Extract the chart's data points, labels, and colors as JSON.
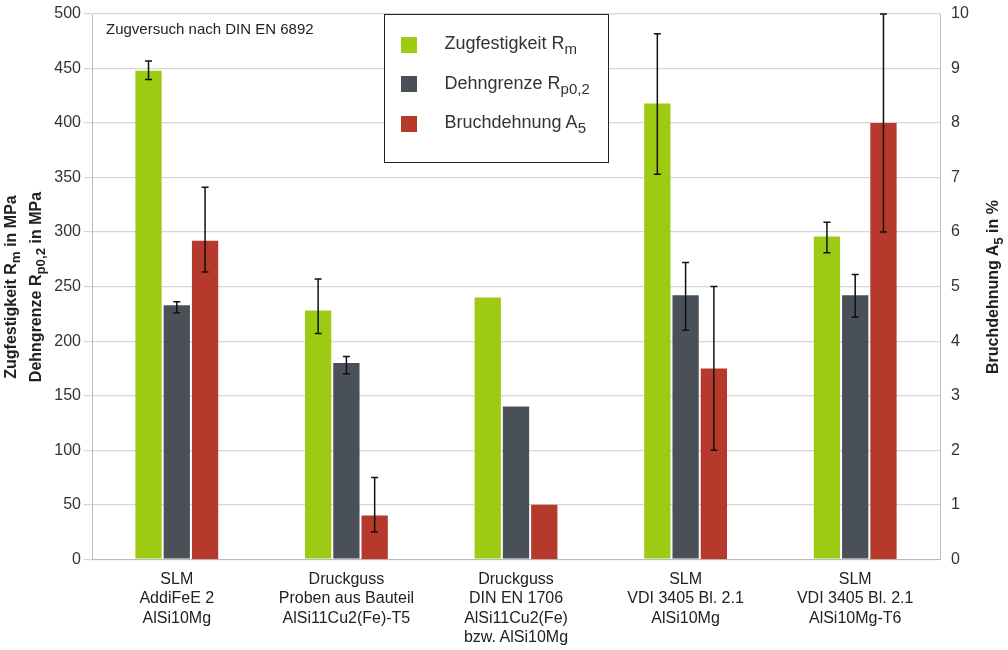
{
  "chart_data": {
    "type": "bar",
    "categories": [
      "SLM\nAddiFeE 2\nAlSi10Mg",
      "Druckguss\nProben aus Bauteil\nAlSi11Cu2(Fe)-T5",
      "Druckguss\nDIN EN 1706\nAlSi11Cu2(Fe)\nbzw. AlSi10Mg",
      "SLM\nVDI 3405 Bl. 2.1\nAlSi10Mg",
      "SLM\nVDI 3405 Bl. 2.1\nAlSi10Mg-T6"
    ],
    "series": [
      {
        "name": "Zugfestigkeit R$_{m}$",
        "color": "#9dcb14",
        "values": [
          448,
          228,
          240,
          418,
          296
        ],
        "errors": [
          [
            440,
            457
          ],
          [
            207,
            257
          ],
          null,
          [
            353,
            482
          ],
          [
            281,
            309
          ]
        ]
      },
      {
        "name": "Dehngrenze R$_{p0,2}$",
        "color": "#4a5057",
        "values": [
          233,
          180,
          140,
          242,
          242
        ],
        "errors": [
          [
            226,
            236
          ],
          [
            170,
            186
          ],
          null,
          [
            210,
            272
          ],
          [
            222,
            261
          ]
        ]
      },
      {
        "name": "Bruchdehnung A$_{5}$",
        "color": "#b63a2c",
        "axis": "y2",
        "values": [
          5.84,
          0.8,
          1.0,
          3.5,
          8.0
        ],
        "errors": [
          [
            5.27,
            6.82
          ],
          [
            0.5,
            1.5
          ],
          null,
          [
            2.0,
            5.0
          ],
          [
            6.0,
            10.0
          ]
        ]
      }
    ],
    "ylabel": "Zugfestigkeit R$_{m}$ in MPa\nDehngrenze R$_{p0,2}$ in MPa",
    "y2label": "Bruchdehnung A$_{5}$ in %",
    "ylim": [
      0,
      500
    ],
    "yticks": [
      0,
      50,
      100,
      150,
      200,
      250,
      300,
      350,
      400,
      450,
      500
    ],
    "y2lim": [
      0,
      10
    ],
    "y2ticks": [
      0,
      1,
      2,
      3,
      4,
      5,
      6,
      7,
      8,
      9,
      10
    ],
    "annotations": [
      "Zugversuch nach DIN EN 6892"
    ],
    "grid": "y",
    "legend": "top"
  }
}
